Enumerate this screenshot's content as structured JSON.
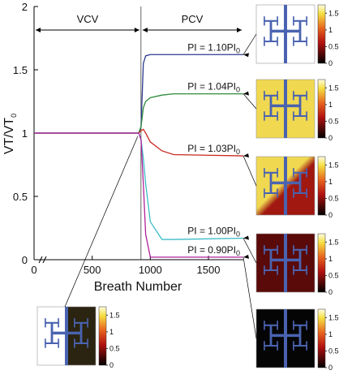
{
  "chart_data": {
    "type": "line",
    "y_label": {
      "text": "VT/VT",
      "sub": "0"
    },
    "x_label": "Breath Number",
    "x": [
      0,
      900,
      920,
      940,
      960,
      1000,
      1100,
      1200,
      1800
    ],
    "xlim": [
      0,
      1800
    ],
    "xticks": [
      0,
      500,
      1000,
      1500
    ],
    "ylim": [
      0,
      2
    ],
    "yticks": [
      0,
      0.5,
      1,
      1.5,
      2
    ],
    "regions": [
      {
        "label": "VCV",
        "range": [
          0,
          920
        ]
      },
      {
        "label": "PCV",
        "range": [
          920,
          1800
        ]
      }
    ],
    "series": [
      {
        "name": {
          "text": "PI = 1.10PI",
          "sub": "0"
        },
        "color": "#2b3990",
        "values": [
          1,
          1,
          1.05,
          1.55,
          1.61,
          1.62,
          1.62,
          1.62,
          1.62
        ]
      },
      {
        "name": {
          "text": "PI = 1.04PI",
          "sub": "0"
        },
        "color": "#2e8b3a",
        "values": [
          1,
          1,
          1.05,
          1.2,
          1.25,
          1.28,
          1.3,
          1.31,
          1.31
        ]
      },
      {
        "name": {
          "text": "PI = 1.03PI",
          "sub": "0"
        },
        "color": "#c8281e",
        "values": [
          1,
          1,
          1.02,
          1.03,
          1.0,
          0.93,
          0.86,
          0.83,
          0.82
        ]
      },
      {
        "name": {
          "text": "PI = 1.00PI",
          "sub": "0"
        },
        "color": "#3cbcc8",
        "values": [
          1,
          1,
          0.95,
          0.8,
          0.6,
          0.3,
          0.16,
          0.16,
          0.17
        ]
      },
      {
        "name": {
          "text": "PI = 0.90PI",
          "sub": "0"
        },
        "color": "#b0219a",
        "values": [
          1,
          1,
          0.95,
          0.6,
          0.2,
          0.02,
          0.02,
          0.02,
          0.02
        ]
      }
    ],
    "colorbar_lim": [
      0,
      1.75
    ],
    "colorbar_ticks": [
      0,
      0.5,
      1,
      1.5
    ]
  }
}
